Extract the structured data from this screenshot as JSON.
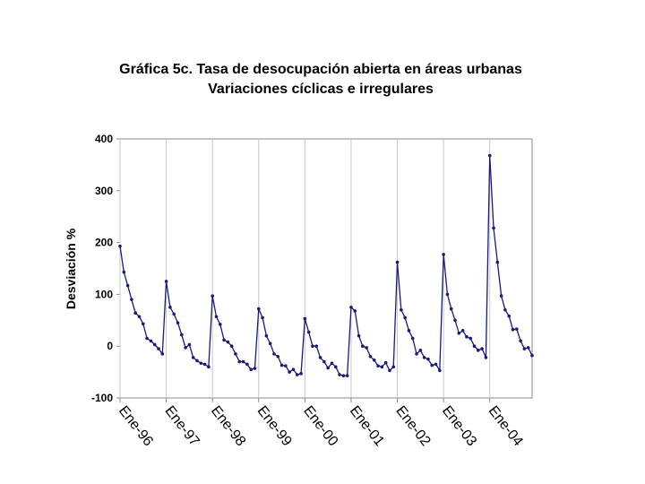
{
  "chart_data": {
    "type": "line",
    "title": "Gráfica 5c. Tasa de desocupación abierta en áreas urbanas",
    "subtitle": "Variaciones cíclicas e irregulares",
    "y_label": "Desviación %",
    "categories": [
      "Ene-96",
      null,
      null,
      null,
      null,
      null,
      null,
      null,
      null,
      null,
      null,
      null,
      "Ene-97",
      null,
      null,
      null,
      null,
      null,
      null,
      null,
      null,
      null,
      null,
      null,
      "Ene-98",
      null,
      null,
      null,
      null,
      null,
      null,
      null,
      null,
      null,
      null,
      null,
      "Ene-99",
      null,
      null,
      null,
      null,
      null,
      null,
      null,
      null,
      null,
      null,
      null,
      "Ene-00",
      null,
      null,
      null,
      null,
      null,
      null,
      null,
      null,
      null,
      null,
      null,
      "Ene-01",
      null,
      null,
      null,
      null,
      null,
      null,
      null,
      null,
      null,
      null,
      null,
      "Ene-02",
      null,
      null,
      null,
      null,
      null,
      null,
      null,
      null,
      null,
      null,
      null,
      "Ene-03",
      null,
      null,
      null,
      null,
      null,
      null,
      null,
      null,
      null,
      null,
      null,
      "Ene-04",
      null,
      null,
      null,
      null,
      null,
      null,
      null,
      null,
      null,
      null,
      null
    ],
    "series": [
      {
        "name": "Desviación",
        "color": "#1a1a7a",
        "values": [
          193,
          143,
          117,
          90,
          64,
          57,
          43,
          15,
          10,
          3,
          -5,
          -15,
          125,
          75,
          62,
          45,
          22,
          -3,
          3,
          -22,
          -28,
          -33,
          -35,
          -40,
          97,
          57,
          42,
          12,
          8,
          0,
          -15,
          -30,
          -30,
          -35,
          -45,
          -43,
          72,
          55,
          20,
          5,
          -15,
          -20,
          -37,
          -38,
          -50,
          -45,
          -55,
          -53,
          53,
          27,
          0,
          0,
          -22,
          -30,
          -42,
          -33,
          -40,
          -55,
          -57,
          -57,
          75,
          68,
          20,
          0,
          -3,
          -20,
          -27,
          -38,
          -40,
          -32,
          -47,
          -40,
          162,
          70,
          55,
          30,
          15,
          -15,
          -8,
          -22,
          -25,
          -37,
          -35,
          -47,
          177,
          100,
          72,
          50,
          25,
          30,
          18,
          15,
          0,
          -8,
          -5,
          -22,
          368,
          228,
          162,
          97,
          70,
          58,
          32,
          33,
          10,
          -5,
          -3,
          -18
        ]
      }
    ],
    "ylim": [
      -100,
      400
    ],
    "yticks": [
      -100,
      0,
      100,
      200,
      300,
      400
    ],
    "grid": true
  }
}
